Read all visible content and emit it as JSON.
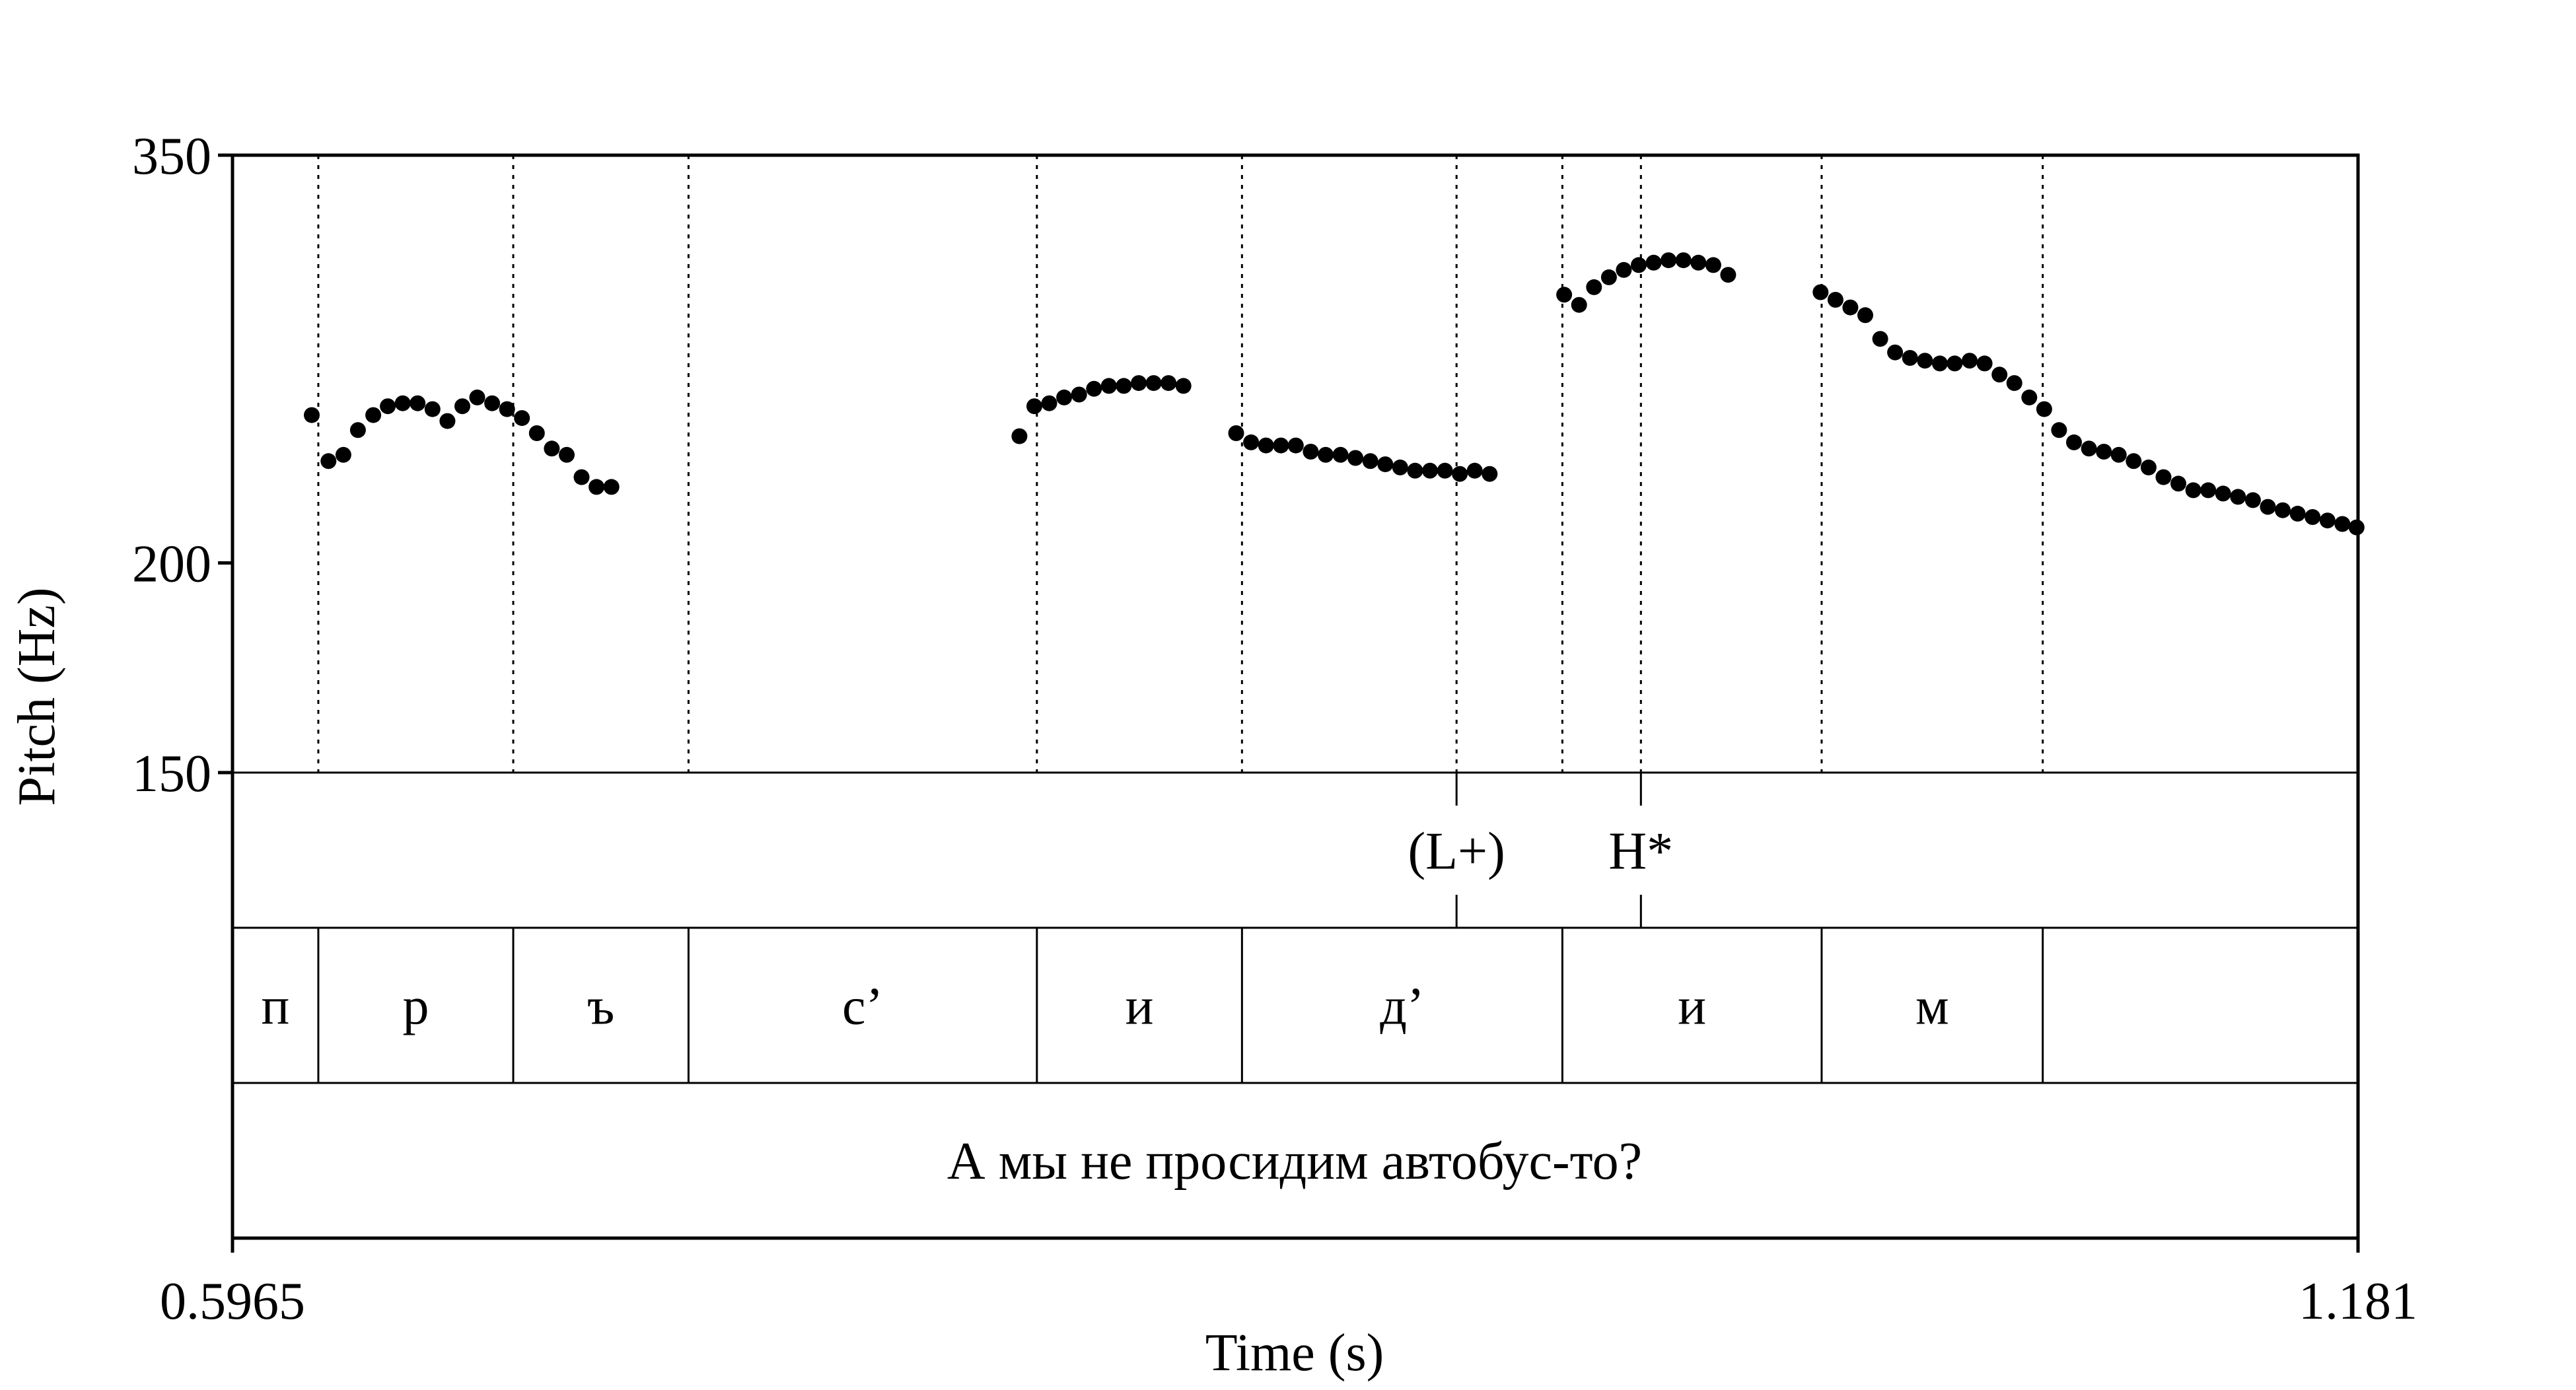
{
  "chart_data": {
    "type": "scatter",
    "xlabel": "Time (s)",
    "ylabel": "Pitch (Hz)",
    "xlim": [
      0.5965,
      1.181
    ],
    "ylim": [
      150,
      350
    ],
    "x_ticks": [
      "0.5965",
      "1.181"
    ],
    "y_ticks": [
      {
        "value": 350,
        "label": "350"
      },
      {
        "value": 200,
        "label": "200"
      },
      {
        "value": 150,
        "label": "150"
      }
    ],
    "y_scale": "log",
    "boundaries": [
      0.6201,
      0.6737,
      0.7219,
      0.8177,
      0.8741,
      0.9622,
      1.0335,
      1.0943
    ],
    "tone_tier": [
      {
        "t": 0.9331,
        "label": "(L+)"
      },
      {
        "t": 0.9838,
        "label": "H*"
      }
    ],
    "segment_tier": [
      {
        "label": "п"
      },
      {
        "label": "р"
      },
      {
        "label": "ъ"
      },
      {
        "label": "с’"
      },
      {
        "label": "и"
      },
      {
        "label": "д’"
      },
      {
        "label": "и"
      },
      {
        "label": "м"
      },
      {
        "label": ""
      }
    ],
    "sentence": "А мы не просидим автобус-то?",
    "points": [
      [
        0.6183,
        245
      ],
      [
        0.6229,
        230
      ],
      [
        0.627,
        232
      ],
      [
        0.631,
        240
      ],
      [
        0.6352,
        245
      ],
      [
        0.6392,
        248
      ],
      [
        0.6433,
        249
      ],
      [
        0.6474,
        249
      ],
      [
        0.6515,
        247
      ],
      [
        0.6556,
        243
      ],
      [
        0.6597,
        248
      ],
      [
        0.6638,
        251
      ],
      [
        0.6679,
        249
      ],
      [
        0.672,
        247
      ],
      [
        0.6761,
        244
      ],
      [
        0.6802,
        239
      ],
      [
        0.6843,
        234
      ],
      [
        0.6884,
        232
      ],
      [
        0.6925,
        225
      ],
      [
        0.6966,
        222
      ],
      [
        0.7007,
        222
      ],
      [
        0.8129,
        238
      ],
      [
        0.817,
        248
      ],
      [
        0.8211,
        249
      ],
      [
        0.8252,
        251
      ],
      [
        0.8293,
        252
      ],
      [
        0.8334,
        254
      ],
      [
        0.8375,
        255
      ],
      [
        0.8416,
        255
      ],
      [
        0.8457,
        256
      ],
      [
        0.8498,
        256
      ],
      [
        0.8539,
        256
      ],
      [
        0.858,
        255
      ],
      [
        0.8725,
        239
      ],
      [
        0.8766,
        236
      ],
      [
        0.8807,
        235
      ],
      [
        0.8848,
        235
      ],
      [
        0.8889,
        235
      ],
      [
        0.893,
        233
      ],
      [
        0.8971,
        232
      ],
      [
        0.9012,
        232
      ],
      [
        0.9053,
        231
      ],
      [
        0.9094,
        230
      ],
      [
        0.9135,
        229
      ],
      [
        0.9176,
        228
      ],
      [
        0.9217,
        227
      ],
      [
        0.9258,
        227
      ],
      [
        0.9299,
        227
      ],
      [
        0.934,
        226
      ],
      [
        0.9381,
        227
      ],
      [
        0.9422,
        226
      ],
      [
        0.9627,
        289
      ],
      [
        0.9668,
        285
      ],
      [
        0.9709,
        292
      ],
      [
        0.975,
        296
      ],
      [
        0.9791,
        299
      ],
      [
        0.9832,
        301
      ],
      [
        0.9873,
        302
      ],
      [
        0.9914,
        303
      ],
      [
        0.9955,
        303
      ],
      [
        0.9996,
        302
      ],
      [
        1.0037,
        301
      ],
      [
        1.0078,
        297
      ],
      [
        1.0332,
        290
      ],
      [
        1.0373,
        287
      ],
      [
        1.0414,
        284
      ],
      [
        1.0455,
        281
      ],
      [
        1.0496,
        272
      ],
      [
        1.0537,
        267
      ],
      [
        1.0578,
        265
      ],
      [
        1.0619,
        264
      ],
      [
        1.066,
        263
      ],
      [
        1.0701,
        263
      ],
      [
        1.0742,
        264
      ],
      [
        1.0783,
        263
      ],
      [
        1.0824,
        259
      ],
      [
        1.0865,
        256
      ],
      [
        1.0906,
        251
      ],
      [
        1.0947,
        247
      ],
      [
        1.0988,
        240
      ],
      [
        1.1029,
        236
      ],
      [
        1.107,
        234
      ],
      [
        1.1111,
        233
      ],
      [
        1.1152,
        232
      ],
      [
        1.1193,
        230
      ],
      [
        1.1234,
        228
      ],
      [
        1.1275,
        225
      ],
      [
        1.1316,
        223
      ],
      [
        1.1357,
        221
      ],
      [
        1.1398,
        221
      ],
      [
        1.1439,
        220
      ],
      [
        1.148,
        219
      ],
      [
        1.1521,
        218
      ],
      [
        1.1562,
        216
      ],
      [
        1.1603,
        215
      ],
      [
        1.1644,
        214
      ],
      [
        1.1685,
        213
      ],
      [
        1.1726,
        212
      ],
      [
        1.1767,
        211
      ],
      [
        1.1806,
        210
      ]
    ]
  }
}
